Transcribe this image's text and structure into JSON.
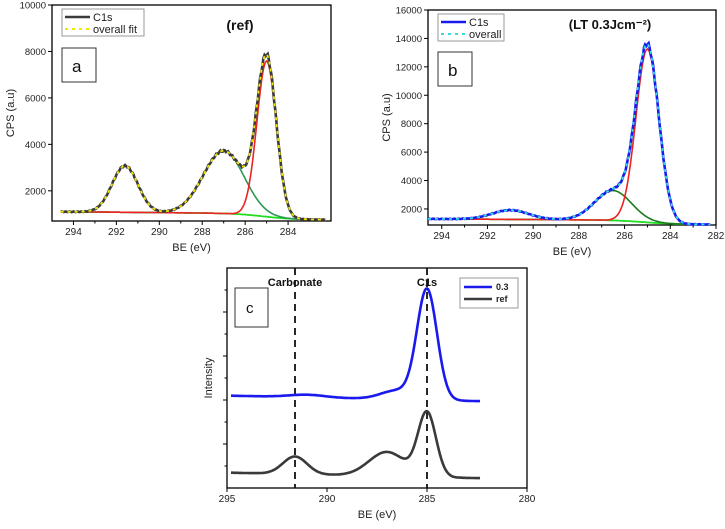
{
  "chart_data": [
    {
      "type": "line",
      "panel_label": "a",
      "title": "(ref)",
      "xlabel": "BE (eV)",
      "ylabel": "CPS (a.u)",
      "xlim": [
        295,
        282
      ],
      "ylim": [
        700,
        10000
      ],
      "xticks": [
        294,
        292,
        290,
        288,
        286,
        284
      ],
      "yticks": [
        2000,
        4000,
        6000,
        8000,
        10000
      ],
      "legend": {
        "placement": "top-left",
        "entries": [
          "C1s",
          "overall fit"
        ]
      },
      "background": {
        "start": [
          294.6,
          1100
        ],
        "end": [
          282,
          750
        ]
      },
      "components": [
        {
          "center": 291.6,
          "height": 2000,
          "sigma": 0.6,
          "color": "#22dd22"
        },
        {
          "center": 287.0,
          "height": 2700,
          "sigma": 0.95,
          "color": "#2a9a55"
        },
        {
          "center": 285.0,
          "height": 6700,
          "sigma": 0.45,
          "color": "#ee2222"
        }
      ],
      "data_color": "#3a3a3a",
      "fit_color": "#f2e600",
      "bg_color": "#22dd22"
    },
    {
      "type": "line",
      "panel_label": "b",
      "title": "(LT 0.3Jcm⁻²)",
      "xlabel": "BE (eV)",
      "ylabel": "CPS (a.u)",
      "xlim": [
        294.6,
        282
      ],
      "ylim": [
        870,
        16000
      ],
      "xticks": [
        294,
        292,
        290,
        288,
        286,
        284,
        282
      ],
      "yticks": [
        2000,
        4000,
        6000,
        8000,
        10000,
        12000,
        14000,
        16000
      ],
      "legend": {
        "placement": "top-left",
        "entries": [
          "C1s",
          "overall"
        ]
      },
      "background": {
        "start": [
          294.6,
          1300
        ],
        "end": [
          282,
          900
        ]
      },
      "components": [
        {
          "center": 291.0,
          "height": 650,
          "sigma": 0.8,
          "color": "#22dd22"
        },
        {
          "center": 286.5,
          "height": 2100,
          "sigma": 0.8,
          "color": "#1a7a1a"
        },
        {
          "center": 285.0,
          "height": 12200,
          "sigma": 0.5,
          "color": "#ee2222"
        }
      ],
      "data_color": "#1a1aee",
      "fit_color": "#33dddd",
      "bg_color": "#22dd22"
    },
    {
      "type": "line",
      "panel_label": "c",
      "xlabel": "BE (eV)",
      "ylabel": "Intensity",
      "xlim": [
        295,
        280
      ],
      "ylim": [
        0,
        1
      ],
      "xticks": [
        295,
        290,
        285,
        280
      ],
      "legend": {
        "placement": "top-right",
        "entries": [
          "0.3",
          "ref"
        ]
      },
      "annotations": [
        {
          "text": "Carbonate",
          "x": 291.6
        },
        {
          "text": "C1s",
          "x": 285.0
        }
      ],
      "series": [
        {
          "name": "0.3",
          "color": "#1a1aee",
          "xrange": [
            294.8,
            282.3
          ],
          "baseline": 0.41,
          "components": [
            {
              "center": 291.0,
              "height": 0.012,
              "sigma": 0.9
            },
            {
              "center": 286.5,
              "height": 0.04,
              "sigma": 0.8
            },
            {
              "center": 285.0,
              "height": 0.5,
              "sigma": 0.5
            }
          ]
        },
        {
          "name": "ref",
          "color": "#3a3a3a",
          "xrange": [
            294.8,
            282.3
          ],
          "baseline": 0.06,
          "components": [
            {
              "center": 291.6,
              "height": 0.08,
              "sigma": 0.6
            },
            {
              "center": 287.0,
              "height": 0.11,
              "sigma": 0.9
            },
            {
              "center": 285.0,
              "height": 0.29,
              "sigma": 0.45
            }
          ]
        }
      ]
    }
  ]
}
